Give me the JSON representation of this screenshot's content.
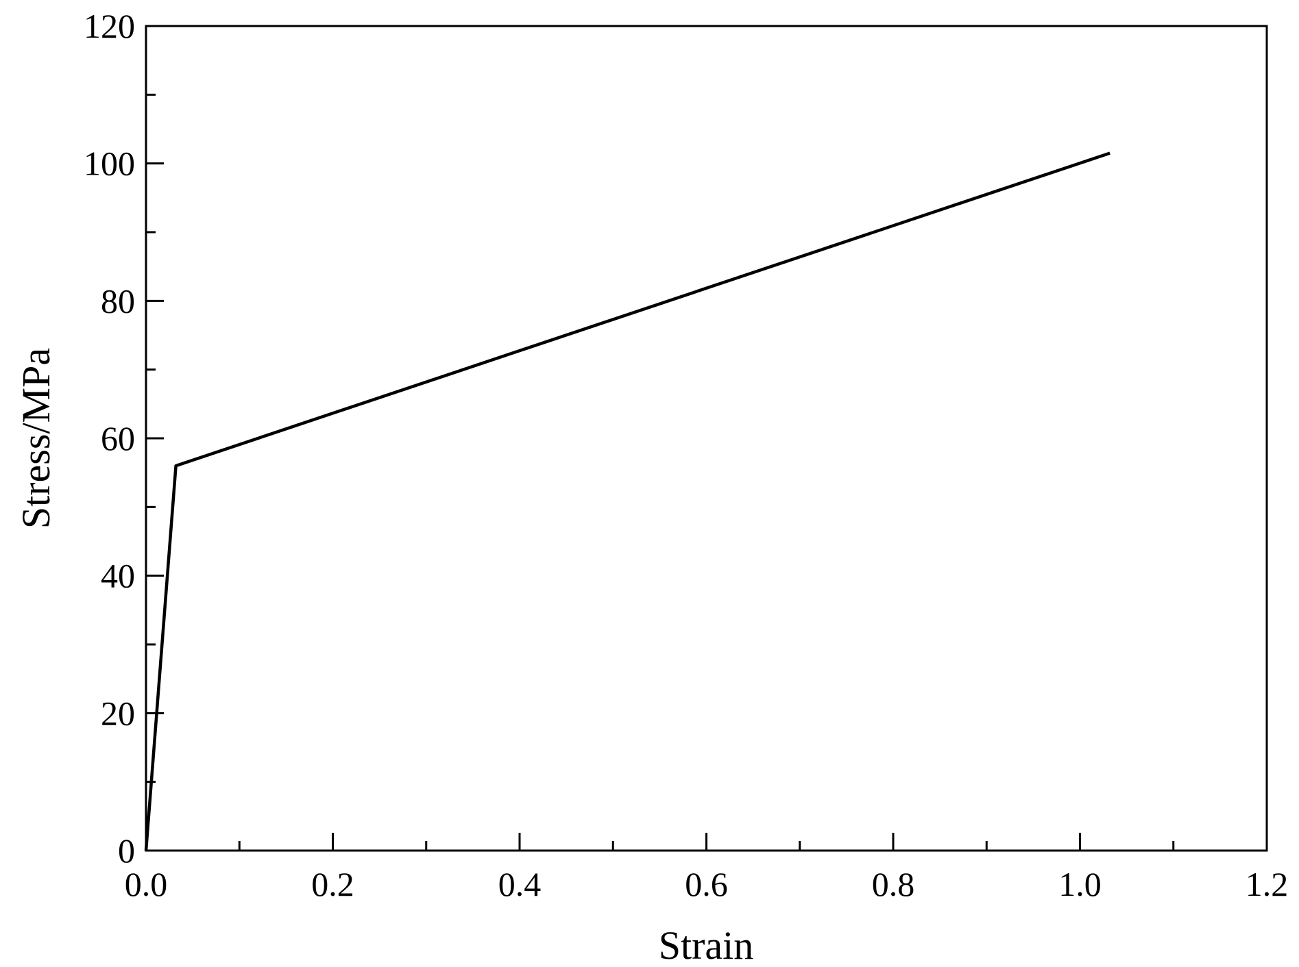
{
  "chart_data": {
    "type": "line",
    "title": "",
    "xlabel": "Strain",
    "ylabel": "Stress/MPa",
    "xlim": [
      0.0,
      1.2
    ],
    "ylim": [
      0,
      120
    ],
    "xticks": [
      0.0,
      0.2,
      0.4,
      0.6,
      0.8,
      1.0,
      1.2
    ],
    "xtick_labels": [
      "0.0",
      "0.2",
      "0.4",
      "0.6",
      "0.8",
      "1.0",
      "1.2"
    ],
    "xminor": [
      0.1,
      0.3,
      0.5,
      0.7,
      0.9,
      1.1
    ],
    "yticks": [
      0,
      20,
      40,
      60,
      80,
      100,
      120
    ],
    "ytick_labels": [
      "0",
      "20",
      "40",
      "60",
      "80",
      "100",
      "120"
    ],
    "yminor": [
      10,
      30,
      50,
      70,
      90,
      110
    ],
    "grid": false,
    "legend": "none",
    "line_color": "#000000",
    "series": [
      {
        "x": [
          0.0,
          0.032,
          1.032
        ],
        "y": [
          0,
          56,
          101.5
        ]
      }
    ]
  }
}
